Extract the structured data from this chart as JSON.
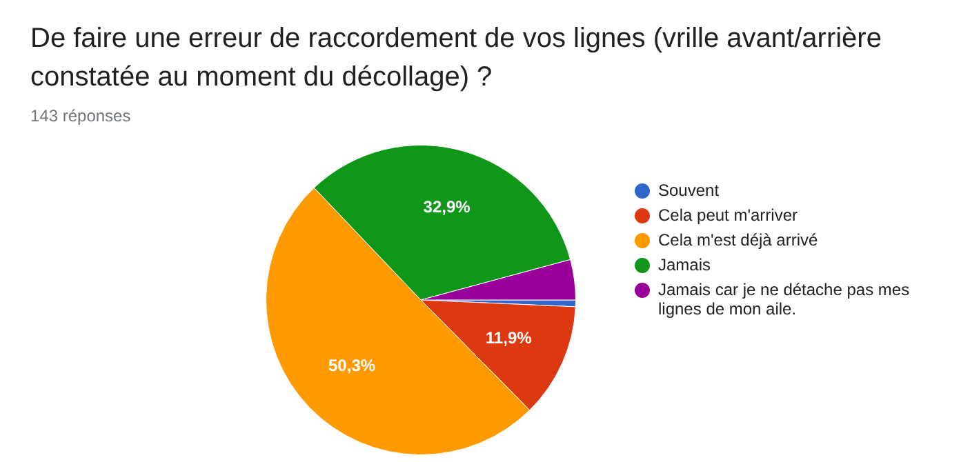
{
  "chart_data": {
    "type": "pie",
    "title": "De faire une erreur de raccordement de vos lignes (vrille avant/arrière constatée au moment du décollage) ?",
    "subtitle": "143 réponses",
    "categories": [
      "Souvent",
      "Cela peut m'arriver",
      "Cela m'est déjà arrivé",
      "Jamais",
      "Jamais car je ne détache pas mes lignes de mon aile."
    ],
    "values": [
      0.7,
      11.9,
      50.3,
      32.9,
      4.2
    ],
    "value_labels": [
      null,
      "11,9%",
      "50,3%",
      "32,9%",
      null
    ],
    "colors": [
      "#3366cc",
      "#dc3912",
      "#ff9900",
      "#109618",
      "#990099"
    ],
    "legend": "right"
  }
}
